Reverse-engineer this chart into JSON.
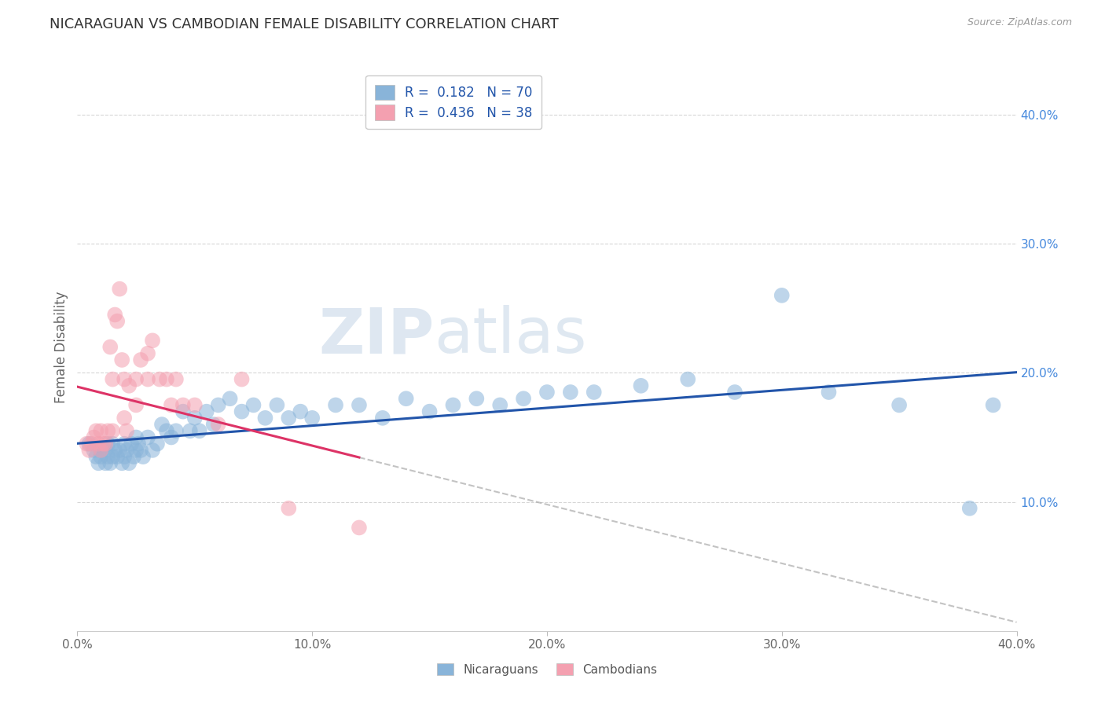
{
  "title": "NICARAGUAN VS CAMBODIAN FEMALE DISABILITY CORRELATION CHART",
  "source": "Source: ZipAtlas.com",
  "ylabel": "Female Disability",
  "xlim": [
    0.0,
    0.4
  ],
  "ylim": [
    0.0,
    0.44
  ],
  "xtick_values": [
    0.0,
    0.1,
    0.2,
    0.3,
    0.4
  ],
  "xtick_labels": [
    "0.0%",
    "10.0%",
    "20.0%",
    "30.0%",
    "40.0%"
  ],
  "ytick_values": [
    0.1,
    0.2,
    0.3,
    0.4
  ],
  "ytick_labels": [
    "10.0%",
    "20.0%",
    "30.0%",
    "40.0%"
  ],
  "legend_r1": "R =  0.182",
  "legend_n1": "N = 70",
  "legend_r2": "R =  0.436",
  "legend_n2": "N = 38",
  "blue_color": "#89B4D9",
  "pink_color": "#F4A0B0",
  "line_blue": "#2255AA",
  "line_pink": "#DD3366",
  "watermark_zip": "ZIP",
  "watermark_atlas": "atlas",
  "blue_scatter_x": [
    0.005,
    0.007,
    0.008,
    0.009,
    0.01,
    0.01,
    0.012,
    0.012,
    0.013,
    0.013,
    0.014,
    0.015,
    0.015,
    0.016,
    0.017,
    0.018,
    0.019,
    0.02,
    0.02,
    0.021,
    0.022,
    0.023,
    0.024,
    0.025,
    0.025,
    0.026,
    0.027,
    0.028,
    0.03,
    0.032,
    0.034,
    0.036,
    0.038,
    0.04,
    0.042,
    0.045,
    0.048,
    0.05,
    0.052,
    0.055,
    0.058,
    0.06,
    0.065,
    0.07,
    0.075,
    0.08,
    0.085,
    0.09,
    0.095,
    0.1,
    0.11,
    0.12,
    0.13,
    0.14,
    0.15,
    0.16,
    0.17,
    0.18,
    0.19,
    0.2,
    0.21,
    0.22,
    0.24,
    0.26,
    0.28,
    0.3,
    0.32,
    0.35,
    0.38,
    0.39
  ],
  "blue_scatter_y": [
    0.145,
    0.14,
    0.135,
    0.13,
    0.14,
    0.135,
    0.14,
    0.13,
    0.145,
    0.135,
    0.13,
    0.145,
    0.135,
    0.14,
    0.135,
    0.14,
    0.13,
    0.145,
    0.135,
    0.14,
    0.13,
    0.145,
    0.135,
    0.15,
    0.14,
    0.145,
    0.14,
    0.135,
    0.15,
    0.14,
    0.145,
    0.16,
    0.155,
    0.15,
    0.155,
    0.17,
    0.155,
    0.165,
    0.155,
    0.17,
    0.16,
    0.175,
    0.18,
    0.17,
    0.175,
    0.165,
    0.175,
    0.165,
    0.17,
    0.165,
    0.175,
    0.175,
    0.165,
    0.18,
    0.17,
    0.175,
    0.18,
    0.175,
    0.18,
    0.185,
    0.185,
    0.185,
    0.19,
    0.195,
    0.185,
    0.26,
    0.185,
    0.175,
    0.095,
    0.175
  ],
  "pink_scatter_x": [
    0.004,
    0.005,
    0.006,
    0.007,
    0.008,
    0.009,
    0.01,
    0.01,
    0.011,
    0.012,
    0.013,
    0.014,
    0.015,
    0.015,
    0.016,
    0.017,
    0.018,
    0.019,
    0.02,
    0.02,
    0.021,
    0.022,
    0.025,
    0.025,
    0.027,
    0.03,
    0.03,
    0.032,
    0.035,
    0.038,
    0.04,
    0.042,
    0.045,
    0.05,
    0.06,
    0.07,
    0.09,
    0.12
  ],
  "pink_scatter_y": [
    0.145,
    0.14,
    0.145,
    0.15,
    0.155,
    0.145,
    0.155,
    0.14,
    0.145,
    0.145,
    0.155,
    0.22,
    0.195,
    0.155,
    0.245,
    0.24,
    0.265,
    0.21,
    0.195,
    0.165,
    0.155,
    0.19,
    0.195,
    0.175,
    0.21,
    0.215,
    0.195,
    0.225,
    0.195,
    0.195,
    0.175,
    0.195,
    0.175,
    0.175,
    0.16,
    0.195,
    0.095,
    0.08
  ]
}
